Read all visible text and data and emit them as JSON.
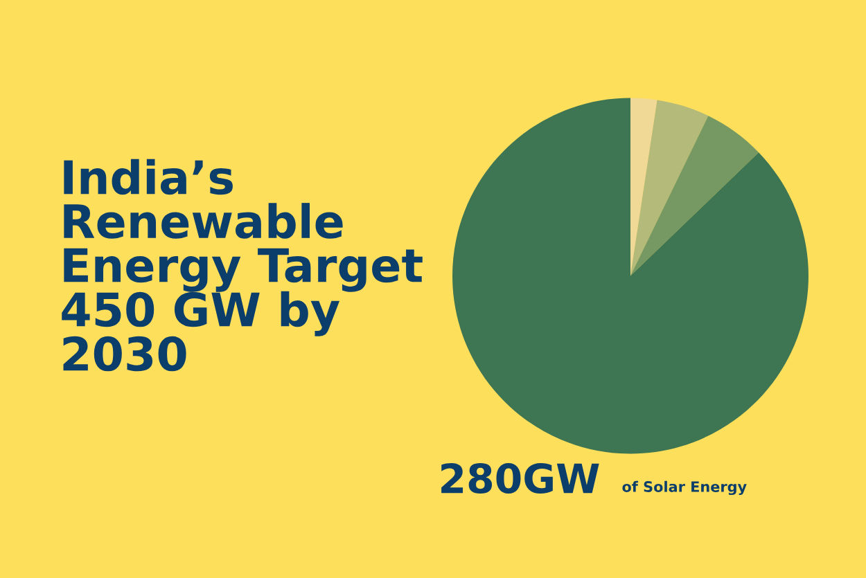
{
  "chart_data": {
    "type": "pie",
    "title": "India’s\nRenewable\nEnergy Target\n450 GW by\n2030",
    "categories": [
      null,
      null,
      null,
      null
    ],
    "values": [
      2.4,
      4.8,
      5.6,
      87.2
    ],
    "colors": [
      "#f0d896",
      "#b3ba7a",
      "#769964",
      "#3e7553"
    ],
    "annotations": [
      "280GW",
      "of Solar Energy"
    ]
  }
}
